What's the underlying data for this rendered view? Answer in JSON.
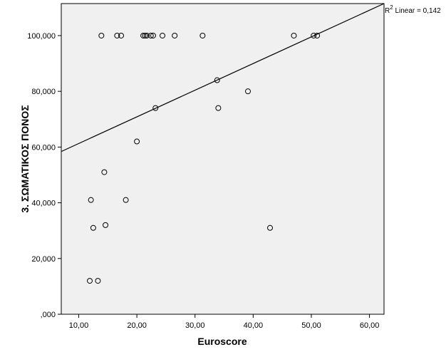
{
  "chart_data": {
    "type": "scatter",
    "xlabel": "Euroscore",
    "ylabel": "3. ΣΩΜΑΤΙΚΟΣ ΠΟΝΟΣ",
    "xlim": [
      7.0,
      62.5
    ],
    "ylim": [
      0,
      111.5
    ],
    "x_ticks": [
      10,
      20,
      30,
      40,
      50,
      60
    ],
    "x_tick_labels": [
      "10,00",
      "20,00",
      "30,00",
      "40,00",
      "50,00",
      "60,00"
    ],
    "y_ticks": [
      0,
      20,
      40,
      60,
      80,
      100
    ],
    "y_tick_labels": [
      ",000",
      "20,000",
      "40,000",
      "60,000",
      "80,000",
      "100,000"
    ],
    "grid": false,
    "background": "#f0f0f0",
    "marker": "open-circle",
    "points": [
      {
        "x": 13.9,
        "y": 100
      },
      {
        "x": 16.6,
        "y": 100
      },
      {
        "x": 17.3,
        "y": 100
      },
      {
        "x": 21.1,
        "y": 100
      },
      {
        "x": 21.4,
        "y": 100
      },
      {
        "x": 21.7,
        "y": 100
      },
      {
        "x": 22.4,
        "y": 100
      },
      {
        "x": 22.8,
        "y": 100
      },
      {
        "x": 24.4,
        "y": 100
      },
      {
        "x": 26.5,
        "y": 100
      },
      {
        "x": 31.3,
        "y": 100
      },
      {
        "x": 47.0,
        "y": 100
      },
      {
        "x": 50.4,
        "y": 100
      },
      {
        "x": 51.0,
        "y": 100
      },
      {
        "x": 33.8,
        "y": 84
      },
      {
        "x": 39.1,
        "y": 80
      },
      {
        "x": 23.2,
        "y": 74
      },
      {
        "x": 34.0,
        "y": 74
      },
      {
        "x": 20.0,
        "y": 62
      },
      {
        "x": 14.4,
        "y": 51
      },
      {
        "x": 12.1,
        "y": 41
      },
      {
        "x": 18.1,
        "y": 41
      },
      {
        "x": 14.6,
        "y": 32
      },
      {
        "x": 12.5,
        "y": 31
      },
      {
        "x": 42.9,
        "y": 31
      },
      {
        "x": 11.9,
        "y": 12
      },
      {
        "x": 13.3,
        "y": 12
      }
    ],
    "fit_line": {
      "type": "linear",
      "x0": 7.0,
      "y0": 58.4,
      "x1": 62.5,
      "y1": 111.5
    },
    "annotation": {
      "prefix": "R",
      "superscript": "2",
      "text": " Linear = 0,142"
    }
  }
}
